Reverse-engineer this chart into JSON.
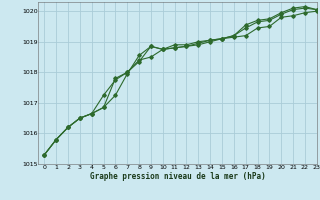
{
  "title": "Graphe pression niveau de la mer (hPa)",
  "background_color": "#cce8f0",
  "grid_color": "#aaccd8",
  "line_color": "#2d6a2d",
  "xlim": [
    -0.5,
    23
  ],
  "ylim": [
    1015.0,
    1020.3
  ],
  "yticks": [
    1015,
    1016,
    1017,
    1018,
    1019,
    1020
  ],
  "xticks": [
    0,
    1,
    2,
    3,
    4,
    5,
    6,
    7,
    8,
    9,
    10,
    11,
    12,
    13,
    14,
    15,
    16,
    17,
    18,
    19,
    20,
    21,
    22,
    23
  ],
  "series": [
    [
      1015.3,
      1015.8,
      1016.2,
      1016.5,
      1016.65,
      1016.85,
      1017.8,
      1018.0,
      1018.35,
      1018.85,
      1018.75,
      1018.9,
      1018.9,
      1019.0,
      1019.05,
      1019.1,
      1019.15,
      1019.2,
      1019.45,
      1019.5,
      1019.8,
      1019.85,
      1019.95,
      1020.0
    ],
    [
      1015.3,
      1015.8,
      1016.2,
      1016.5,
      1016.65,
      1016.85,
      1017.25,
      1017.95,
      1018.55,
      1018.85,
      1018.75,
      1018.8,
      1018.85,
      1018.9,
      1019.0,
      1019.1,
      1019.2,
      1019.45,
      1019.65,
      1019.7,
      1019.9,
      1020.05,
      1020.1,
      1020.05
    ],
    [
      1015.3,
      1015.8,
      1016.2,
      1016.5,
      1016.65,
      1017.25,
      1017.75,
      1018.0,
      1018.4,
      1018.5,
      1018.75,
      1018.8,
      1018.85,
      1018.95,
      1019.05,
      1019.1,
      1019.2,
      1019.55,
      1019.7,
      1019.75,
      1019.95,
      1020.1,
      1020.15,
      1020.05
    ]
  ]
}
